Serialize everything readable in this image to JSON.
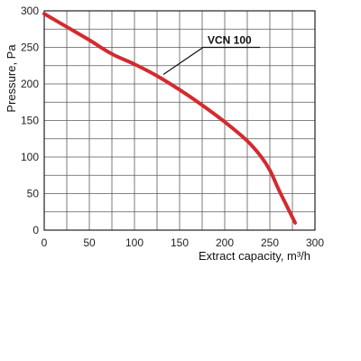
{
  "chart_data": {
    "type": "line",
    "xlabel": "Extract capacity, m³/h",
    "ylabel": "Pressure, Pa",
    "xlim": [
      0,
      300
    ],
    "ylim": [
      0,
      300
    ],
    "x_ticks": [
      0,
      50,
      100,
      150,
      200,
      250,
      300
    ],
    "y_ticks": [
      0,
      50,
      100,
      150,
      200,
      250,
      300
    ],
    "x_grid_step": 25,
    "y_grid_step": 25,
    "grid": true,
    "series": [
      {
        "name": "VCN 100",
        "color": "#d42a2f",
        "x": [
          0,
          25,
          50,
          75,
          100,
          125,
          150,
          175,
          200,
          225,
          240,
          250,
          260,
          270,
          278
        ],
        "y": [
          296,
          278,
          260,
          241,
          227,
          211,
          192,
          171,
          148,
          122,
          101,
          82,
          55,
          30,
          10
        ]
      }
    ],
    "annotations": [
      {
        "text": "VCN 100",
        "target_x": 132,
        "target_y": 213,
        "text_x": 164,
        "text_y": 250
      }
    ]
  }
}
